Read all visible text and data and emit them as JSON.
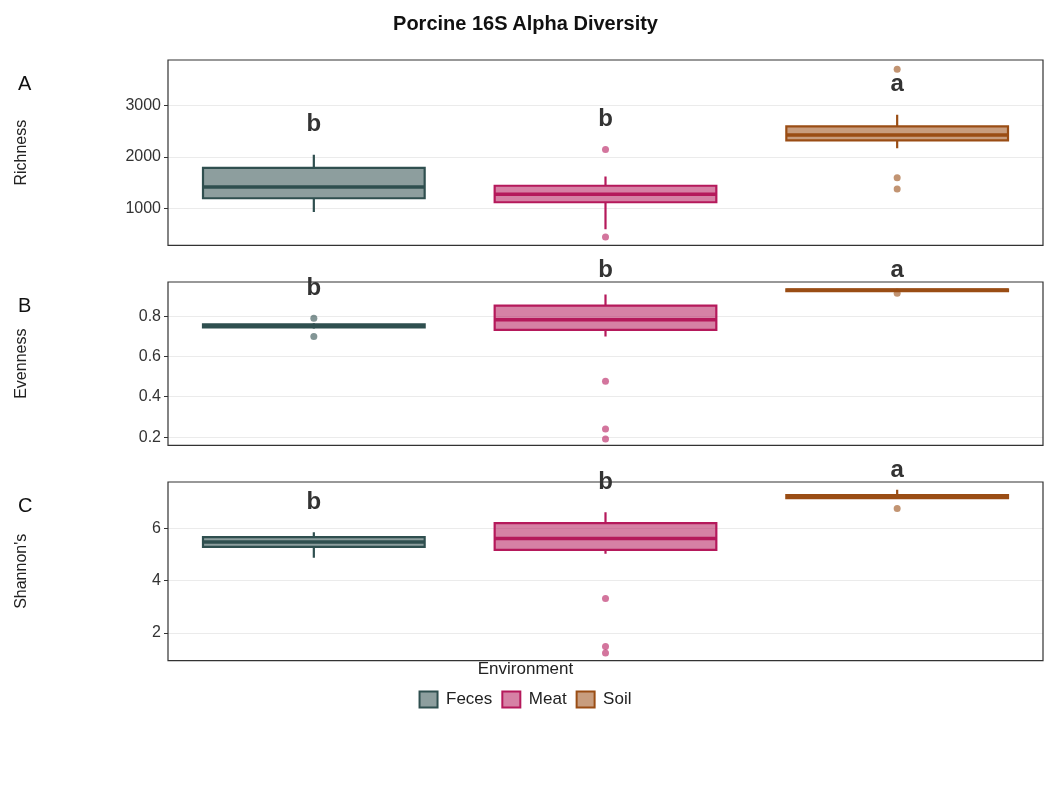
{
  "chart_data": [
    {
      "type": "box",
      "title": "Porcine 16S Alpha Diversity",
      "ylabel": "Richness",
      "categories": [
        null
      ],
      "ylim": [
        290,
        3880
      ],
      "yticks": [
        1000,
        2000,
        3000
      ],
      "grid": "y",
      "tick_labels": "y",
      "annotations": [
        "A",
        "b",
        "b",
        "a"
      ],
      "series": [
        {
          "color": "#2f4f4f",
          "boxes": [
            {
              "low": 935,
              "q1": 1203,
              "median": 1420,
              "q3": 1790,
              "high": 2044
            }
          ]
        },
        {
          "color": "#b5195b",
          "boxes": [
            {
              "low": 604,
              "q1": 1126,
              "median": 1280,
              "q3": 1445,
              "high": 1623,
              "outliers": [
                2147,
                451
              ]
            }
          ]
        },
        {
          "color": "#9a4d14",
          "boxes": [
            {
              "low": 2170,
              "q1": 2325,
              "median": 2427,
              "q3": 2593,
              "high": 2822,
              "outliers": [
                3700,
                1598,
                1382
              ]
            }
          ]
        }
      ]
    },
    {
      "type": "box",
      "ylabel": "Evenness",
      "categories": [
        null
      ],
      "ylim": [
        0.16,
        0.97
      ],
      "yticks": [
        0.2,
        0.4,
        0.6,
        0.8
      ],
      "grid": "y",
      "tick_labels": "y",
      "annotations": [
        "B",
        "b",
        "b",
        "a"
      ],
      "series": [
        {
          "color": "#2f4f4f",
          "boxes": [
            {
              "low": 0.74,
              "q1": 0.745,
              "median": 0.752,
              "q3": 0.76,
              "high": 0.765,
              "outliers": [
                0.79,
                0.7
              ]
            }
          ]
        },
        {
          "color": "#b5195b",
          "boxes": [
            {
              "low": 0.7,
              "q1": 0.733,
              "median": 0.783,
              "q3": 0.853,
              "high": 0.908,
              "outliers": [
                0.478,
                0.241,
                0.192
              ]
            }
          ]
        },
        {
          "color": "#9a4d14",
          "boxes": [
            {
              "low": 0.92,
              "q1": 0.925,
              "median": 0.929,
              "q3": 0.933,
              "high": 0.936,
              "outliers": [
                0.914
              ]
            }
          ]
        }
      ]
    },
    {
      "type": "box",
      "ylabel": "Shannon's",
      "categories": [
        null
      ],
      "ylim": [
        0.94,
        7.8
      ],
      "yticks": [
        2,
        4,
        6
      ],
      "grid": "y",
      "tick_labels": "y",
      "annotations": [
        "C",
        "b",
        "b",
        "a"
      ],
      "legend": "bottom",
      "legend_title": "Environment",
      "series": [
        {
          "name": "Feces",
          "color": "#2f4f4f",
          "boxes": [
            {
              "low": 4.89,
              "q1": 5.31,
              "median": 5.5,
              "q3": 5.68,
              "high": 5.87
            }
          ]
        },
        {
          "name": "Meat",
          "color": "#b5195b",
          "boxes": [
            {
              "low": 5.04,
              "q1": 5.19,
              "median": 5.63,
              "q3": 6.22,
              "high": 6.64,
              "outliers": [
                3.33,
                1.48,
                1.23
              ]
            }
          ]
        },
        {
          "name": "Soil",
          "color": "#9a4d14",
          "boxes": [
            {
              "low": 7.15,
              "q1": 7.18,
              "median": 7.24,
              "q3": 7.3,
              "high": 7.5,
              "outliers": [
                6.78
              ]
            }
          ]
        }
      ]
    }
  ]
}
